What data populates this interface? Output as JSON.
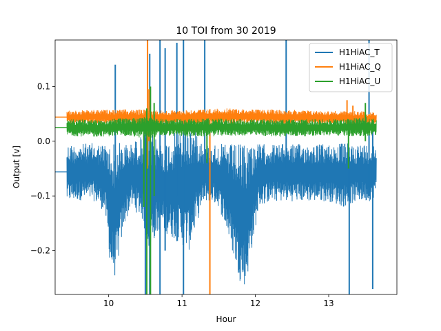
{
  "chart_data": {
    "type": "line",
    "title": "10 TOI from 30 2019",
    "xlabel": "Hour",
    "ylabel": "Output [v]",
    "xlim": [
      9.27,
      13.93
    ],
    "ylim": [
      -0.28,
      0.185
    ],
    "xticks": [
      10,
      11,
      12,
      13
    ],
    "yticks": [
      -0.2,
      -0.1,
      0.0,
      0.1
    ],
    "ytick_labels": [
      "−0.2",
      "−0.1",
      "0.0",
      "0.1"
    ],
    "grid": false,
    "legend_position": "top-right",
    "series": [
      {
        "name": "H1HiAC_T",
        "color": "#1f77b4",
        "baseline": -0.056,
        "before_start": {
          "x": [
            9.27,
            9.43
          ],
          "value": -0.056
        },
        "envelope": {
          "x": [
            9.43,
            9.6,
            9.8,
            9.95,
            10.03,
            10.1,
            10.2,
            10.3,
            10.45,
            10.55,
            10.62,
            10.7,
            10.8,
            10.9,
            11.0,
            11.1,
            11.2,
            11.3,
            11.4,
            11.5,
            11.6,
            11.7,
            11.8,
            11.87,
            11.95,
            12.05,
            12.2,
            12.4,
            12.6,
            12.8,
            13.0,
            13.2,
            13.4,
            13.55,
            13.65
          ],
          "upper": [
            -0.005,
            -0.005,
            -0.003,
            -0.005,
            -0.005,
            0.0,
            -0.003,
            -0.005,
            0.01,
            0.02,
            0.01,
            0.0,
            0.0,
            0.015,
            0.02,
            0.03,
            0.02,
            -0.005,
            -0.005,
            -0.005,
            -0.005,
            -0.005,
            -0.005,
            0.0,
            0.0,
            -0.005,
            -0.005,
            -0.005,
            -0.005,
            -0.005,
            -0.005,
            -0.003,
            -0.005,
            -0.005,
            -0.005
          ],
          "lower": [
            -0.112,
            -0.108,
            -0.11,
            -0.13,
            -0.24,
            -0.25,
            -0.16,
            -0.12,
            -0.14,
            -0.2,
            -0.18,
            -0.16,
            -0.17,
            -0.18,
            -0.19,
            -0.2,
            -0.15,
            -0.11,
            -0.11,
            -0.12,
            -0.16,
            -0.21,
            -0.26,
            -0.265,
            -0.2,
            -0.12,
            -0.11,
            -0.11,
            -0.11,
            -0.11,
            -0.11,
            -0.12,
            -0.11,
            -0.11,
            -0.1
          ]
        },
        "spikes": [
          {
            "x": 10.09,
            "low": -0.05,
            "high": 0.14
          },
          {
            "x": 10.5,
            "low": -0.29,
            "high": 0.02
          },
          {
            "x": 10.56,
            "low": -0.29,
            "high": 0.16
          },
          {
            "x": 10.7,
            "low": -0.29,
            "high": 0.19
          },
          {
            "x": 10.77,
            "low": -0.2,
            "high": 0.17
          },
          {
            "x": 10.93,
            "low": -0.1,
            "high": 0.18
          },
          {
            "x": 11.02,
            "low": -0.29,
            "high": 0.19
          },
          {
            "x": 11.31,
            "low": -0.1,
            "high": 0.19
          },
          {
            "x": 12.42,
            "low": -0.05,
            "high": 0.19
          },
          {
            "x": 13.28,
            "low": -0.29,
            "high": -0.03
          },
          {
            "x": 13.55,
            "low": -0.1,
            "high": 0.19
          },
          {
            "x": 13.6,
            "low": -0.27,
            "high": 0.05
          }
        ]
      },
      {
        "name": "H1HiAC_Q",
        "color": "#ff7f0e",
        "baseline": 0.044,
        "before_start": {
          "x": [
            9.27,
            9.43
          ],
          "value": 0.044
        },
        "envelope": {
          "x": [
            9.43,
            9.8,
            10.2,
            10.5,
            10.8,
            11.2,
            11.6,
            12.0,
            12.4,
            12.8,
            13.2,
            13.5,
            13.65
          ],
          "upper": [
            0.056,
            0.057,
            0.058,
            0.058,
            0.056,
            0.058,
            0.06,
            0.058,
            0.058,
            0.056,
            0.055,
            0.055,
            0.052
          ],
          "lower": [
            0.03,
            0.032,
            0.03,
            0.025,
            0.03,
            0.03,
            0.032,
            0.032,
            0.03,
            0.03,
            0.03,
            0.03,
            0.03
          ]
        },
        "spikes": [
          {
            "x": 10.53,
            "low": -0.05,
            "high": 0.19
          },
          {
            "x": 10.55,
            "low": 0.0,
            "high": 0.095
          },
          {
            "x": 11.38,
            "low": -0.29,
            "high": 0.04
          },
          {
            "x": 13.25,
            "low": 0.02,
            "high": 0.075
          },
          {
            "x": 13.33,
            "low": 0.03,
            "high": 0.065
          }
        ]
      },
      {
        "name": "H1HiAC_U",
        "color": "#2ca02c",
        "baseline": 0.025,
        "before_start": {
          "x": [
            9.27,
            9.43
          ],
          "value": 0.025
        },
        "envelope": {
          "x": [
            9.43,
            9.8,
            10.2,
            10.5,
            10.8,
            11.2,
            11.6,
            12.0,
            12.4,
            12.8,
            13.2,
            13.5,
            13.65
          ],
          "upper": [
            0.04,
            0.04,
            0.042,
            0.045,
            0.04,
            0.042,
            0.042,
            0.04,
            0.04,
            0.04,
            0.04,
            0.045,
            0.04
          ],
          "lower": [
            0.01,
            0.008,
            0.01,
            0.005,
            0.01,
            0.008,
            0.01,
            0.01,
            0.008,
            0.01,
            0.01,
            0.008,
            0.01
          ]
        },
        "spikes": [
          {
            "x": 10.48,
            "low": -0.12,
            "high": 0.03
          },
          {
            "x": 10.52,
            "low": -0.29,
            "high": 0.06
          },
          {
            "x": 10.57,
            "low": -0.29,
            "high": 0.1
          },
          {
            "x": 10.62,
            "low": -0.1,
            "high": 0.07
          },
          {
            "x": 11.34,
            "low": -0.04,
            "high": 0.04
          },
          {
            "x": 13.27,
            "low": -0.05,
            "high": 0.04
          },
          {
            "x": 13.5,
            "low": 0.0,
            "high": 0.07
          }
        ]
      }
    ]
  }
}
